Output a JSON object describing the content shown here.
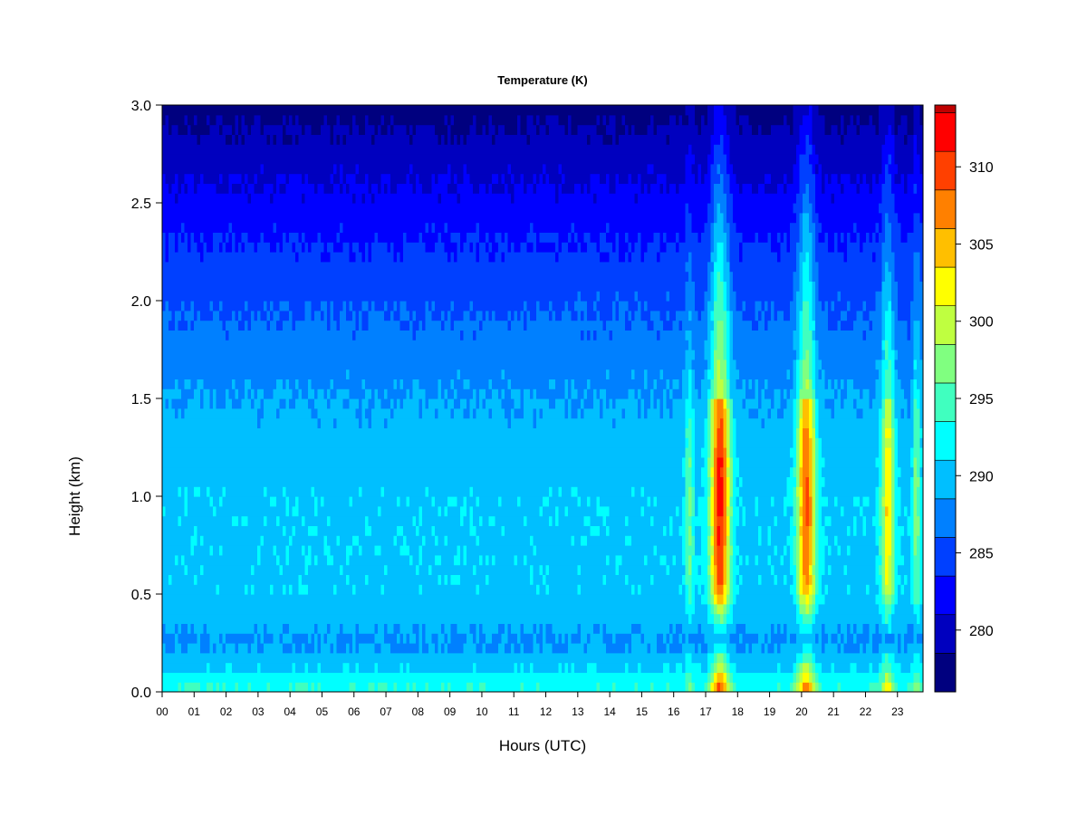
{
  "chart_data": {
    "type": "heatmap",
    "title": "Temperature (K)",
    "xlabel": "Hours (UTC)",
    "ylabel": "Height (km)",
    "xlim": [
      0,
      23.8
    ],
    "ylim": [
      0,
      3.0
    ],
    "x_ticks": [
      0,
      1,
      2,
      3,
      4,
      5,
      6,
      7,
      8,
      9,
      10,
      11,
      12,
      13,
      14,
      15,
      16,
      17,
      18,
      19,
      20,
      21,
      22,
      23
    ],
    "x_tick_labels": [
      "00",
      "01",
      "02",
      "03",
      "04",
      "05",
      "06",
      "07",
      "08",
      "09",
      "10",
      "11",
      "12",
      "13",
      "14",
      "15",
      "16",
      "17",
      "18",
      "19",
      "20",
      "21",
      "22",
      "23"
    ],
    "y_ticks": [
      0.0,
      0.5,
      1.0,
      1.5,
      2.0,
      2.5,
      3.0
    ],
    "y_tick_labels": [
      "0.0",
      "0.5",
      "1.0",
      "1.5",
      "2.0",
      "2.5",
      "3.0"
    ],
    "colorbar": {
      "min": 276,
      "max": 314,
      "step": 2.5,
      "ticks": [
        280,
        285,
        290,
        295,
        300,
        305,
        310
      ],
      "tick_labels": [
        "280",
        "285",
        "290",
        "295",
        "300",
        "305",
        "310"
      ],
      "colors": [
        "#00007F",
        "#0000BF",
        "#0000FF",
        "#0040FF",
        "#0080FF",
        "#00BFFF",
        "#00FFFF",
        "#40FFBF",
        "#80FF80",
        "#BFFF40",
        "#FFFF00",
        "#FFBF00",
        "#FF8000",
        "#FF4000",
        "#FF0000",
        "#BF0000",
        "#7F0000"
      ]
    },
    "background_profile": [
      {
        "height_km": 0.0,
        "value": 294
      },
      {
        "height_km": 0.1,
        "value": 291
      },
      {
        "height_km": 0.25,
        "value": 288
      },
      {
        "height_km": 0.5,
        "value": 290.5
      },
      {
        "height_km": 1.0,
        "value": 290.5
      },
      {
        "height_km": 1.3,
        "value": 289.5
      },
      {
        "height_km": 1.6,
        "value": 288
      },
      {
        "height_km": 2.0,
        "value": 285.5
      },
      {
        "height_km": 2.3,
        "value": 283.5
      },
      {
        "height_km": 2.6,
        "value": 281
      },
      {
        "height_km": 3.0,
        "value": 277.5
      }
    ],
    "warm_features": [
      {
        "center_hour": 16.5,
        "width_hours": 0.13,
        "amplitude": 6
      },
      {
        "center_hour": 17.45,
        "width_hours": 0.3,
        "amplitude": 22
      },
      {
        "center_hour": 20.15,
        "width_hours": 0.28,
        "amplitude": 19
      },
      {
        "center_hour": 22.7,
        "width_hours": 0.2,
        "amplitude": 13
      },
      {
        "center_hour": 23.6,
        "width_hours": 0.12,
        "amplitude": 7
      }
    ]
  }
}
